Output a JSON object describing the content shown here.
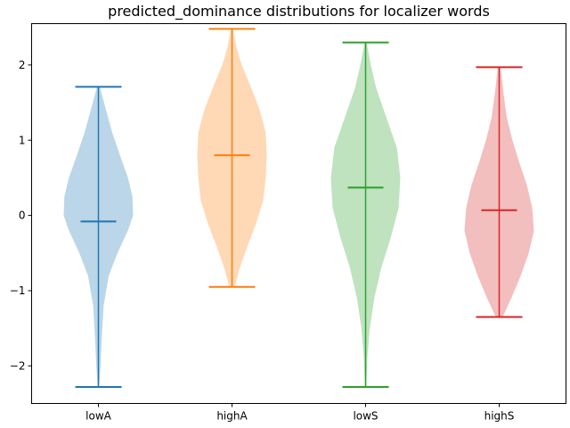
{
  "chart_data": {
    "type": "violin",
    "title": "predicted_dominance distributions for localizer words",
    "xlabel": "",
    "ylabel": "",
    "categories": [
      "lowA",
      "highA",
      "lowS",
      "highS"
    ],
    "ylim": [
      -2.5,
      2.55
    ],
    "yticks": [
      2,
      1,
      0,
      -1,
      -2
    ],
    "ytick_labels": [
      "2",
      "1",
      "0",
      "−1",
      "−2"
    ],
    "grid": false,
    "violins": [
      {
        "category": "lowA",
        "color": "#1f77b4",
        "min": -2.28,
        "max": 1.71,
        "median": -0.08,
        "density": [
          [
            -2.28,
            0.02
          ],
          [
            -2.0,
            0.06
          ],
          [
            -1.6,
            0.1
          ],
          [
            -1.2,
            0.15
          ],
          [
            -0.8,
            0.3
          ],
          [
            -0.5,
            0.55
          ],
          [
            -0.2,
            0.85
          ],
          [
            0.0,
            1.0
          ],
          [
            0.25,
            0.98
          ],
          [
            0.5,
            0.85
          ],
          [
            0.8,
            0.62
          ],
          [
            1.1,
            0.4
          ],
          [
            1.4,
            0.22
          ],
          [
            1.71,
            0.04
          ]
        ]
      },
      {
        "category": "highA",
        "color": "#ff7f0e",
        "min": -0.95,
        "max": 2.48,
        "median": 0.8,
        "density": [
          [
            -0.95,
            0.08
          ],
          [
            -0.7,
            0.22
          ],
          [
            -0.4,
            0.45
          ],
          [
            -0.1,
            0.7
          ],
          [
            0.2,
            0.9
          ],
          [
            0.5,
            0.97
          ],
          [
            0.8,
            1.0
          ],
          [
            1.1,
            0.97
          ],
          [
            1.4,
            0.8
          ],
          [
            1.7,
            0.55
          ],
          [
            2.0,
            0.28
          ],
          [
            2.25,
            0.12
          ],
          [
            2.48,
            0.03
          ]
        ]
      },
      {
        "category": "lowS",
        "color": "#2ca02c",
        "min": -2.28,
        "max": 2.3,
        "median": 0.37,
        "density": [
          [
            -2.28,
            0.02
          ],
          [
            -1.9,
            0.05
          ],
          [
            -1.5,
            0.12
          ],
          [
            -1.1,
            0.25
          ],
          [
            -0.7,
            0.45
          ],
          [
            -0.3,
            0.72
          ],
          [
            0.1,
            0.95
          ],
          [
            0.5,
            1.0
          ],
          [
            0.9,
            0.9
          ],
          [
            1.3,
            0.6
          ],
          [
            1.7,
            0.3
          ],
          [
            2.0,
            0.15
          ],
          [
            2.3,
            0.03
          ]
        ]
      },
      {
        "category": "highS",
        "color": "#d62728",
        "min": -1.35,
        "max": 1.97,
        "median": 0.07,
        "density": [
          [
            -1.35,
            0.1
          ],
          [
            -1.1,
            0.35
          ],
          [
            -0.8,
            0.62
          ],
          [
            -0.5,
            0.85
          ],
          [
            -0.2,
            1.0
          ],
          [
            0.1,
            0.95
          ],
          [
            0.4,
            0.8
          ],
          [
            0.7,
            0.58
          ],
          [
            1.0,
            0.38
          ],
          [
            1.3,
            0.22
          ],
          [
            1.6,
            0.13
          ],
          [
            1.97,
            0.04
          ]
        ]
      }
    ]
  }
}
